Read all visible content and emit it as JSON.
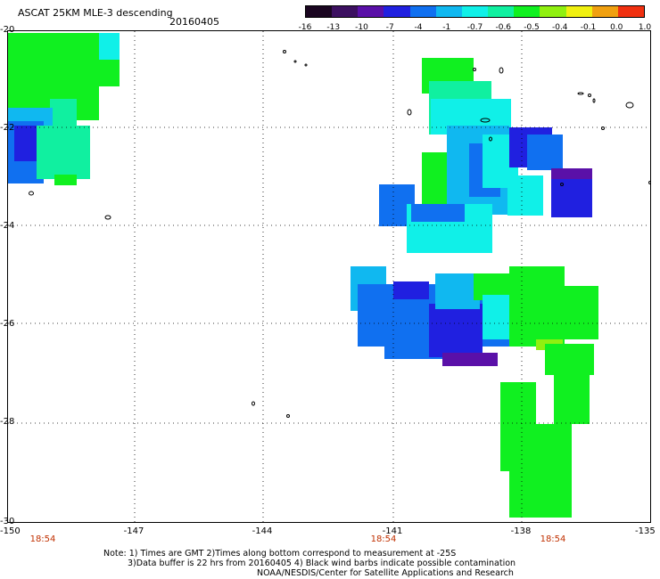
{
  "header": {
    "title": "ASCAT 25KM MLE-3 descending",
    "date": "20160405"
  },
  "colorbar": {
    "labels": [
      "-16",
      "-13",
      "-10",
      "-7",
      "-4",
      "-1",
      "-0.7",
      "-0.6",
      "-0.5",
      "-0.4",
      "-0.1",
      "0.0",
      "1.0"
    ],
    "colors": [
      "#1a0520",
      "#3c1060",
      "#5a10a8",
      "#2020e0",
      "#1070f0",
      "#10b8f0",
      "#10f0e8",
      "#10f0a0",
      "#10f020",
      "#90f010",
      "#f0f010",
      "#f0a010",
      "#f03010"
    ]
  },
  "map": {
    "lat_labels": [
      "-20",
      "-22",
      "-24",
      "-26",
      "-28",
      "-30"
    ],
    "lon_labels": [
      "-150",
      "-147",
      "-144",
      "-141",
      "-138",
      "-135"
    ],
    "time_labels": [
      "18:54",
      "18:54",
      "18:54"
    ],
    "colors": {
      "green": "#10f020",
      "green_cyan": "#10f0a0",
      "cyan": "#10f0e8",
      "sky": "#10b8f0",
      "blue": "#1070f0",
      "deep_blue": "#2020e0",
      "violet": "#5a10a8",
      "yellow_green": "#90f010"
    }
  },
  "notes": {
    "line1": "Note: 1) Times are GMT 2)Times along bottom correspond to measurement at -25S",
    "line2": "3)Data buffer is 22 hrs from 20160405 4) Black wind barbs indicate possible contamination",
    "line3": "NOAA/NESDIS/Center for Satellite Applications and Research"
  }
}
